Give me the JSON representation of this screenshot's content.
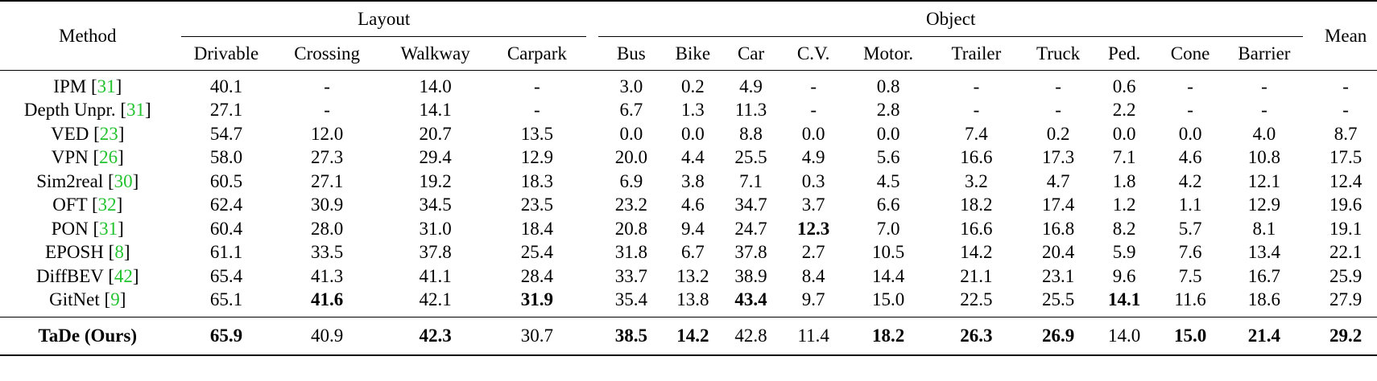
{
  "header": {
    "method": "Method",
    "layout_group": "Layout",
    "object_group": "Object",
    "mean": "Mean",
    "layout_cols": [
      "Drivable",
      "Crossing",
      "Walkway",
      "Carpark"
    ],
    "object_cols": [
      "Bus",
      "Bike",
      "Car",
      "C.V.",
      "Motor.",
      "Trailer",
      "Truck",
      "Ped.",
      "Cone",
      "Barrier"
    ]
  },
  "rows": [
    {
      "name": "IPM",
      "cite": "31",
      "values": [
        "40.1",
        "-",
        "14.0",
        "-",
        "3.0",
        "0.2",
        "4.9",
        "-",
        "0.8",
        "-",
        "-",
        "0.6",
        "-",
        "-",
        "-"
      ]
    },
    {
      "name": "Depth Unpr.",
      "cite": "31",
      "values": [
        "27.1",
        "-",
        "14.1",
        "-",
        "6.7",
        "1.3",
        "11.3",
        "-",
        "2.8",
        "-",
        "-",
        "2.2",
        "-",
        "-",
        "-"
      ]
    },
    {
      "name": "VED",
      "cite": "23",
      "values": [
        "54.7",
        "12.0",
        "20.7",
        "13.5",
        "0.0",
        "0.0",
        "8.8",
        "0.0",
        "0.0",
        "7.4",
        "0.2",
        "0.0",
        "0.0",
        "4.0",
        "8.7"
      ]
    },
    {
      "name": "VPN",
      "cite": "26",
      "values": [
        "58.0",
        "27.3",
        "29.4",
        "12.9",
        "20.0",
        "4.4",
        "25.5",
        "4.9",
        "5.6",
        "16.6",
        "17.3",
        "7.1",
        "4.6",
        "10.8",
        "17.5"
      ]
    },
    {
      "name": "Sim2real",
      "cite": "30",
      "values": [
        "60.5",
        "27.1",
        "19.2",
        "18.3",
        "6.9",
        "3.8",
        "7.1",
        "0.3",
        "4.5",
        "3.2",
        "4.7",
        "1.8",
        "4.2",
        "12.1",
        "12.4"
      ]
    },
    {
      "name": "OFT",
      "cite": "32",
      "values": [
        "62.4",
        "30.9",
        "34.5",
        "23.5",
        "23.2",
        "4.6",
        "34.7",
        "3.7",
        "6.6",
        "18.2",
        "17.4",
        "1.2",
        "1.1",
        "12.9",
        "19.6"
      ]
    },
    {
      "name": "PON",
      "cite": "31",
      "values": [
        "60.4",
        "28.0",
        "31.0",
        "18.4",
        "20.8",
        "9.4",
        "24.7",
        "12.3",
        "7.0",
        "16.6",
        "16.8",
        "8.2",
        "5.7",
        "8.1",
        "19.1"
      ],
      "bold": [
        7
      ]
    },
    {
      "name": "EPOSH",
      "cite": "8",
      "values": [
        "61.1",
        "33.5",
        "37.8",
        "25.4",
        "31.8",
        "6.7",
        "37.8",
        "2.7",
        "10.5",
        "14.2",
        "20.4",
        "5.9",
        "7.6",
        "13.4",
        "22.1"
      ]
    },
    {
      "name": "DiffBEV",
      "cite": "42",
      "values": [
        "65.4",
        "41.3",
        "41.1",
        "28.4",
        "33.7",
        "13.2",
        "38.9",
        "8.4",
        "14.4",
        "21.1",
        "23.1",
        "9.6",
        "7.5",
        "16.7",
        "25.9"
      ]
    },
    {
      "name": "GitNet",
      "cite": "9",
      "values": [
        "65.1",
        "41.6",
        "42.1",
        "31.9",
        "35.4",
        "13.8",
        "43.4",
        "9.7",
        "15.0",
        "22.5",
        "25.5",
        "14.1",
        "11.6",
        "18.6",
        "27.9"
      ],
      "bold": [
        1,
        3,
        6,
        11
      ]
    }
  ],
  "ours": {
    "name": "TaDe (Ours)",
    "values": [
      "65.9",
      "40.9",
      "42.3",
      "30.7",
      "38.5",
      "14.2",
      "42.8",
      "11.4",
      "18.2",
      "26.3",
      "26.9",
      "14.0",
      "15.0",
      "21.4",
      "29.2"
    ],
    "bold": [
      0,
      2,
      4,
      5,
      8,
      9,
      10,
      12,
      13,
      14
    ]
  }
}
